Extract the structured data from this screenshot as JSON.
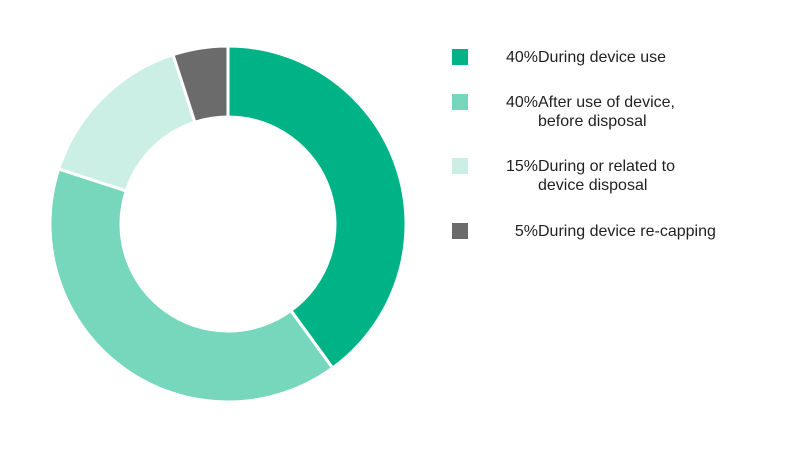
{
  "chart_data": {
    "type": "pie",
    "donut": true,
    "title": "",
    "legend_position": "right",
    "slices": [
      {
        "value": 40,
        "percent_label": "40%",
        "label": "During device use",
        "color": "#00B386"
      },
      {
        "value": 40,
        "percent_label": "40%",
        "label": "After use of device,\nbefore disposal",
        "color": "#76D7BD"
      },
      {
        "value": 15,
        "percent_label": "15%",
        "label": "During or related to\ndevice disposal",
        "color": "#CBEFE4"
      },
      {
        "value": 5,
        "percent_label": "5%",
        "label": "During device re-capping",
        "color": "#6B6B6B"
      }
    ]
  }
}
